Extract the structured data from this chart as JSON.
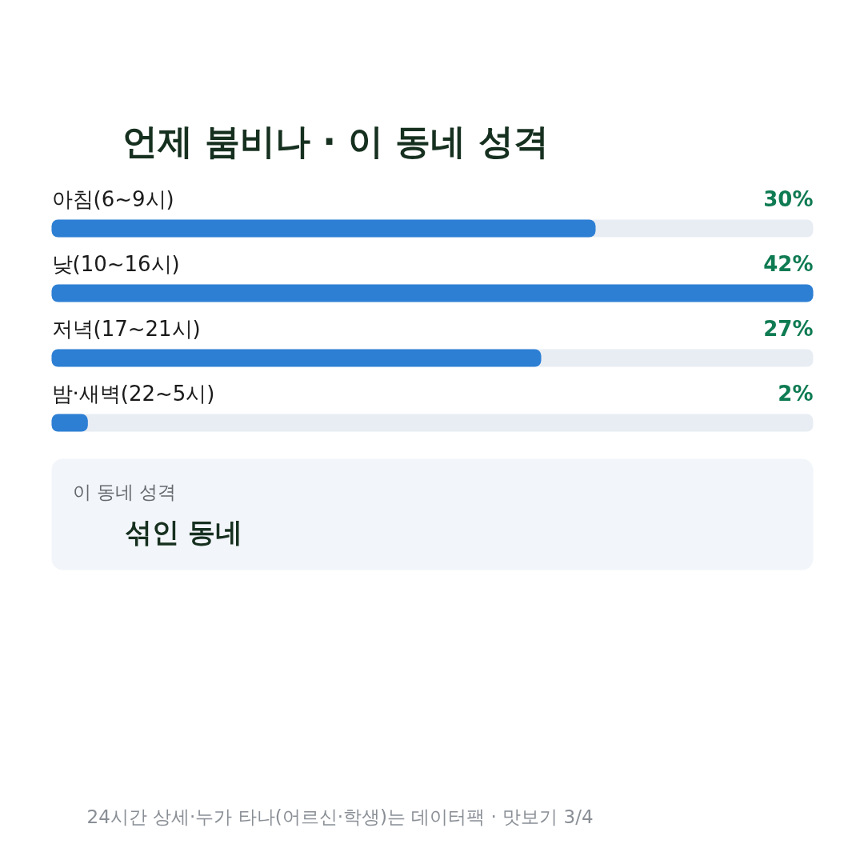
{
  "chart_data": {
    "type": "bar",
    "orientation": "horizontal",
    "title": "언제 붐비나 · 이 동네 성격",
    "categories": [
      "아침(6~9시)",
      "낮(10~16시)",
      "저녁(17~21시)",
      "밤·새벽(22~5시)"
    ],
    "values": [
      30,
      42,
      27,
      2
    ],
    "value_labels": [
      "30%",
      "42%",
      "27%",
      "2%"
    ],
    "color": "#2d7fd4",
    "xlim": [
      0,
      42
    ],
    "tick_labels": false,
    "grid": false,
    "annotations": [
      "이 동네 성격",
      "섞인 동네",
      "24시간 상세·누가 타나(어르신·학생)는 데이터팩 · 맛보기 3/4"
    ]
  }
}
